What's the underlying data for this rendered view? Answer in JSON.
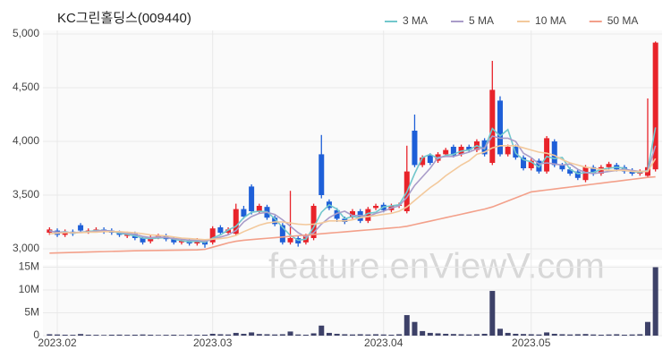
{
  "watermark": "feature.enViewV.com",
  "chart_data": [
    {
      "type": "candlestick",
      "title": "KC그린홀딩스(009440)",
      "up_color": "#e8232a",
      "down_color": "#1e5fd8",
      "legend": "top-right",
      "grid": true,
      "ylim": [
        2900,
        5000
      ],
      "yticks": [
        {
          "value": 3000,
          "label": "3,000"
        },
        {
          "value": 3500,
          "label": "3,500"
        },
        {
          "value": 4000,
          "label": "4,000"
        },
        {
          "value": 4500,
          "label": "4,500"
        },
        {
          "value": 5000,
          "label": "5,000"
        }
      ],
      "open": [
        3150,
        3170,
        3130,
        3160,
        3220,
        3160,
        3170,
        3180,
        3170,
        3150,
        3120,
        3140,
        3100,
        3070,
        3110,
        3120,
        3090,
        3060,
        3080,
        3050,
        3070,
        3060,
        3200,
        3150,
        3140,
        3370,
        3580,
        3350,
        3390,
        3290,
        3220,
        3060,
        3100,
        3060,
        3100,
        3880,
        3440,
        3360,
        3280,
        3300,
        3350,
        3260,
        3380,
        3410,
        3360,
        3400,
        3350,
        4100,
        3780,
        3870,
        3820,
        3880,
        3950,
        3880,
        3950,
        3920,
        4010,
        3800,
        4380,
        3880,
        3950,
        3850,
        3750,
        3820,
        3720,
        4000,
        3780,
        3740,
        3720,
        3640,
        3760,
        3700,
        3760,
        3780,
        3760,
        3730,
        3700,
        3680,
        3740
      ],
      "high": [
        3200,
        3190,
        3180,
        3180,
        3240,
        3190,
        3200,
        3200,
        3190,
        3170,
        3160,
        3160,
        3120,
        3130,
        3140,
        3140,
        3110,
        3100,
        3100,
        3100,
        3090,
        3210,
        3220,
        3200,
        3420,
        3400,
        3600,
        3420,
        3410,
        3310,
        3240,
        3540,
        3120,
        3140,
        3420,
        4060,
        3460,
        3380,
        3300,
        3370,
        3370,
        3390,
        3420,
        3430,
        3420,
        3430,
        3960,
        4250,
        3870,
        3890,
        3900,
        3940,
        3970,
        3970,
        3970,
        4020,
        4030,
        4750,
        4420,
        3970,
        3970,
        3870,
        3840,
        3840,
        4050,
        4020,
        3800,
        3760,
        3740,
        3780,
        3780,
        3780,
        3810,
        3800,
        3780,
        3750,
        3740,
        4400,
        4930
      ],
      "low": [
        3130,
        3110,
        3110,
        3120,
        3150,
        3140,
        3150,
        3140,
        3130,
        3110,
        3100,
        3080,
        3040,
        3050,
        3090,
        3070,
        3040,
        3040,
        3030,
        3030,
        3010,
        3040,
        3130,
        3130,
        3120,
        3280,
        3320,
        3330,
        3270,
        3210,
        3040,
        3040,
        3020,
        3040,
        3080,
        3470,
        3360,
        3250,
        3230,
        3280,
        3240,
        3240,
        3360,
        3340,
        3340,
        3380,
        3330,
        3760,
        3760,
        3780,
        3800,
        3860,
        3850,
        3860,
        3900,
        3900,
        3860,
        3780,
        3860,
        3860,
        3830,
        3730,
        3730,
        3700,
        3700,
        3760,
        3720,
        3680,
        3640,
        3620,
        3680,
        3680,
        3740,
        3720,
        3700,
        3680,
        3680,
        3660,
        3720
      ],
      "close": [
        3180,
        3130,
        3160,
        3140,
        3170,
        3170,
        3180,
        3160,
        3150,
        3130,
        3140,
        3100,
        3060,
        3110,
        3120,
        3090,
        3060,
        3080,
        3050,
        3080,
        3040,
        3190,
        3150,
        3180,
        3370,
        3300,
        3350,
        3400,
        3290,
        3230,
        3060,
        3100,
        3050,
        3120,
        3400,
        3500,
        3380,
        3280,
        3250,
        3350,
        3260,
        3370,
        3400,
        3360,
        3400,
        3410,
        3720,
        3780,
        3850,
        3800,
        3880,
        3920,
        3870,
        3950,
        3920,
        4000,
        3880,
        4480,
        3880,
        3950,
        3850,
        3750,
        3820,
        3720,
        4030,
        3780,
        3740,
        3700,
        3660,
        3760,
        3700,
        3760,
        3790,
        3740,
        3720,
        3700,
        3720,
        3760,
        4920
      ],
      "series": [
        {
          "name": "3 MA",
          "color": "#72c7cc",
          "values": [
            3170,
            3150,
            3160,
            3145,
            3155,
            3160,
            3170,
            3170,
            3165,
            3145,
            3135,
            3120,
            3100,
            3095,
            3100,
            3105,
            3090,
            3075,
            3065,
            3070,
            3060,
            3100,
            3130,
            3175,
            3210,
            3290,
            3340,
            3350,
            3345,
            3280,
            3200,
            3125,
            3080,
            3090,
            3200,
            3340,
            3410,
            3370,
            3280,
            3300,
            3290,
            3330,
            3340,
            3390,
            3400,
            3410,
            3530,
            3700,
            3850,
            3880,
            3840,
            3870,
            3880,
            3910,
            3920,
            3960,
            3930,
            4120,
            4050,
            4110,
            3890,
            3830,
            3810,
            3760,
            3860,
            3840,
            3850,
            3740,
            3700,
            3710,
            3710,
            3740,
            3750,
            3760,
            3750,
            3720,
            3710,
            3730,
            4130
          ]
        },
        {
          "name": "5 MA",
          "color": "#a99cc9",
          "values": [
            3165,
            3155,
            3155,
            3150,
            3155,
            3155,
            3165,
            3170,
            3165,
            3155,
            3145,
            3135,
            3115,
            3105,
            3110,
            3105,
            3095,
            3090,
            3080,
            3080,
            3070,
            3090,
            3110,
            3130,
            3170,
            3250,
            3300,
            3330,
            3340,
            3320,
            3270,
            3210,
            3150,
            3110,
            3150,
            3230,
            3290,
            3330,
            3350,
            3310,
            3310,
            3300,
            3330,
            3350,
            3380,
            3400,
            3480,
            3590,
            3670,
            3750,
            3850,
            3860,
            3860,
            3880,
            3900,
            3930,
            3940,
            4050,
            4030,
            4030,
            4000,
            3890,
            3850,
            3790,
            3800,
            3790,
            3780,
            3790,
            3740,
            3710,
            3700,
            3710,
            3720,
            3730,
            3740,
            3730,
            3720,
            3720,
            3960
          ]
        },
        {
          "name": "10 MA",
          "color": "#f3c99c",
          "values": [
            3140,
            3145,
            3150,
            3150,
            3150,
            3155,
            3155,
            3160,
            3160,
            3160,
            3155,
            3150,
            3140,
            3130,
            3125,
            3120,
            3110,
            3100,
            3095,
            3090,
            3085,
            3090,
            3095,
            3105,
            3125,
            3160,
            3190,
            3220,
            3240,
            3250,
            3250,
            3240,
            3230,
            3225,
            3230,
            3240,
            3260,
            3260,
            3260,
            3270,
            3290,
            3300,
            3310,
            3320,
            3330,
            3350,
            3390,
            3450,
            3510,
            3570,
            3620,
            3680,
            3730,
            3780,
            3820,
            3880,
            3900,
            3940,
            3960,
            3960,
            3960,
            3940,
            3920,
            3900,
            3890,
            3870,
            3830,
            3800,
            3780,
            3760,
            3750,
            3740,
            3730,
            3730,
            3730,
            3720,
            3720,
            3720,
            3840
          ]
        },
        {
          "name": "50 MA",
          "color": "#f3a08a",
          "values": [
            2960,
            2962,
            2964,
            2966,
            2968,
            2970,
            2972,
            2974,
            2976,
            2978,
            2980,
            2982,
            2983,
            2984,
            2985,
            2986,
            2987,
            2988,
            2989,
            2990,
            2995,
            3015,
            3035,
            3055,
            3070,
            3080,
            3086,
            3092,
            3098,
            3104,
            3110,
            3116,
            3122,
            3128,
            3134,
            3140,
            3146,
            3152,
            3158,
            3164,
            3170,
            3176,
            3182,
            3188,
            3194,
            3200,
            3210,
            3226,
            3242,
            3258,
            3274,
            3290,
            3306,
            3322,
            3338,
            3354,
            3370,
            3390,
            3418,
            3446,
            3474,
            3502,
            3530,
            3539,
            3548,
            3557,
            3566,
            3575,
            3584,
            3593,
            3602,
            3611,
            3620,
            3629,
            3638,
            3647,
            3656,
            3665,
            3670
          ]
        }
      ]
    },
    {
      "type": "bar",
      "color": "#3d4168",
      "ylim": [
        0,
        15500000
      ],
      "yticks": [
        0,
        {
          "value": 5000000,
          "label": "5M"
        },
        {
          "value": 10000000,
          "label": "10M"
        },
        {
          "value": 15000000,
          "label": "15M"
        }
      ],
      "categories": [
        null,
        "2023.02",
        null,
        null,
        null,
        null,
        null,
        null,
        null,
        null,
        null,
        null,
        null,
        null,
        null,
        null,
        null,
        null,
        null,
        null,
        null,
        "2023.03",
        null,
        null,
        null,
        null,
        null,
        null,
        null,
        null,
        null,
        null,
        null,
        null,
        null,
        null,
        null,
        null,
        null,
        null,
        null,
        null,
        null,
        "2023.04",
        null,
        null,
        null,
        null,
        null,
        null,
        null,
        null,
        null,
        null,
        null,
        null,
        null,
        null,
        null,
        null,
        null,
        null,
        "2023.05",
        null,
        null,
        null,
        null,
        null,
        null,
        null,
        null,
        null,
        null,
        null,
        null,
        null,
        null,
        null,
        null
      ],
      "values": [
        300000,
        250000,
        200000,
        180000,
        350000,
        200000,
        180000,
        150000,
        200000,
        220000,
        180000,
        200000,
        250000,
        200000,
        150000,
        180000,
        200000,
        150000,
        220000,
        180000,
        200000,
        400000,
        300000,
        250000,
        600000,
        400000,
        700000,
        350000,
        300000,
        250000,
        300000,
        900000,
        250000,
        200000,
        500000,
        2200000,
        600000,
        400000,
        300000,
        250000,
        300000,
        250000,
        300000,
        250000,
        200000,
        300000,
        4500000,
        3000000,
        1000000,
        600000,
        500000,
        400000,
        350000,
        300000,
        250000,
        300000,
        400000,
        9800000,
        1500000,
        600000,
        400000,
        350000,
        300000,
        250000,
        700000,
        400000,
        300000,
        250000,
        300000,
        350000,
        250000,
        200000,
        250000,
        300000,
        200000,
        250000,
        300000,
        3000000,
        15000000
      ]
    }
  ]
}
